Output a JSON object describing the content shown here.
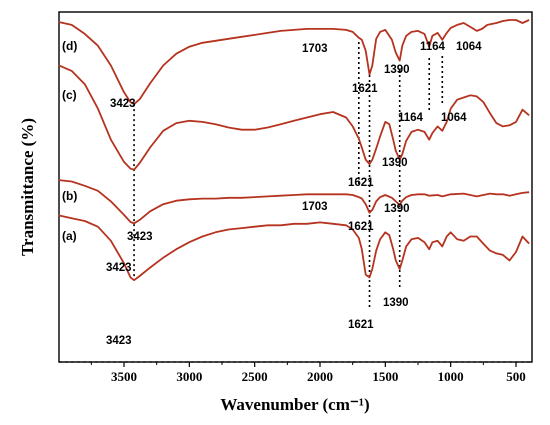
{
  "chart_data": {
    "type": "line",
    "xlabel": "Wavenumber (cm⁻¹)",
    "ylabel": "Transmittance (%)",
    "xlim": [
      4000,
      400
    ],
    "x_reversed": true,
    "xticks": [
      3500,
      3000,
      2500,
      2000,
      1500,
      1000,
      500
    ],
    "ylim": [
      0,
      100
    ],
    "legend": "none",
    "grid": false,
    "line_color": "#b5331f",
    "series": [
      {
        "name": "(d)",
        "points": [
          [
            4000,
            2
          ],
          [
            3900,
            5
          ],
          [
            3800,
            14
          ],
          [
            3700,
            26
          ],
          [
            3600,
            46
          ],
          [
            3500,
            73
          ],
          [
            3450,
            83
          ],
          [
            3423,
            85
          ],
          [
            3380,
            80
          ],
          [
            3300,
            64
          ],
          [
            3200,
            46
          ],
          [
            3100,
            34
          ],
          [
            3000,
            27
          ],
          [
            2900,
            23
          ],
          [
            2800,
            21
          ],
          [
            2700,
            19
          ],
          [
            2600,
            17
          ],
          [
            2500,
            15
          ],
          [
            2400,
            13
          ],
          [
            2300,
            11
          ],
          [
            2200,
            10
          ],
          [
            2100,
            9
          ],
          [
            2000,
            9
          ],
          [
            1900,
            9
          ],
          [
            1800,
            10
          ],
          [
            1750,
            12
          ],
          [
            1703,
            18
          ],
          [
            1680,
            20
          ],
          [
            1650,
            31
          ],
          [
            1621,
            55
          ],
          [
            1600,
            46
          ],
          [
            1570,
            19
          ],
          [
            1540,
            12
          ],
          [
            1500,
            10
          ],
          [
            1450,
            20
          ],
          [
            1420,
            33
          ],
          [
            1390,
            41
          ],
          [
            1370,
            26
          ],
          [
            1340,
            16
          ],
          [
            1300,
            12
          ],
          [
            1250,
            11
          ],
          [
            1200,
            14
          ],
          [
            1164,
            27
          ],
          [
            1140,
            16
          ],
          [
            1100,
            13
          ],
          [
            1064,
            20
          ],
          [
            1030,
            13
          ],
          [
            1000,
            8
          ],
          [
            950,
            5
          ],
          [
            900,
            3
          ],
          [
            850,
            7
          ],
          [
            800,
            11
          ],
          [
            760,
            9
          ],
          [
            720,
            5
          ],
          [
            650,
            3
          ],
          [
            600,
            1
          ],
          [
            550,
            0
          ],
          [
            500,
            0
          ],
          [
            450,
            3
          ],
          [
            400,
            0
          ]
        ]
      },
      {
        "name": "(c)",
        "points": [
          [
            4000,
            3
          ],
          [
            3900,
            8
          ],
          [
            3800,
            20
          ],
          [
            3700,
            42
          ],
          [
            3600,
            70
          ],
          [
            3500,
            90
          ],
          [
            3450,
            96
          ],
          [
            3423,
            97
          ],
          [
            3380,
            91
          ],
          [
            3300,
            77
          ],
          [
            3200,
            62
          ],
          [
            3100,
            55
          ],
          [
            3000,
            53
          ],
          [
            2900,
            54
          ],
          [
            2800,
            56
          ],
          [
            2700,
            59
          ],
          [
            2600,
            61
          ],
          [
            2500,
            61
          ],
          [
            2400,
            59
          ],
          [
            2300,
            56
          ],
          [
            2200,
            53
          ],
          [
            2100,
            50
          ],
          [
            2000,
            47
          ],
          [
            1900,
            45
          ],
          [
            1800,
            50
          ],
          [
            1750,
            58
          ],
          [
            1703,
            69
          ],
          [
            1680,
            77
          ],
          [
            1650,
            88
          ],
          [
            1621,
            92
          ],
          [
            1600,
            88
          ],
          [
            1570,
            78
          ],
          [
            1540,
            67
          ],
          [
            1500,
            54
          ],
          [
            1470,
            56
          ],
          [
            1440,
            70
          ],
          [
            1420,
            80
          ],
          [
            1390,
            88
          ],
          [
            1370,
            83
          ],
          [
            1340,
            71
          ],
          [
            1300,
            63
          ],
          [
            1250,
            61
          ],
          [
            1200,
            63
          ],
          [
            1164,
            70
          ],
          [
            1140,
            64
          ],
          [
            1100,
            58
          ],
          [
            1064,
            62
          ],
          [
            1030,
            54
          ],
          [
            1000,
            42
          ],
          [
            950,
            34
          ],
          [
            900,
            32
          ],
          [
            850,
            30
          ],
          [
            800,
            31
          ],
          [
            750,
            36
          ],
          [
            700,
            46
          ],
          [
            650,
            55
          ],
          [
            600,
            58
          ],
          [
            550,
            57
          ],
          [
            500,
            54
          ],
          [
            450,
            43
          ],
          [
            400,
            48
          ]
        ]
      },
      {
        "name": "(b)",
        "points": [
          [
            4000,
            10
          ],
          [
            3900,
            12
          ],
          [
            3800,
            18
          ],
          [
            3700,
            25
          ],
          [
            3600,
            40
          ],
          [
            3500,
            59
          ],
          [
            3450,
            69
          ],
          [
            3423,
            71
          ],
          [
            3380,
            66
          ],
          [
            3300,
            54
          ],
          [
            3200,
            44
          ],
          [
            3100,
            39
          ],
          [
            3000,
            37
          ],
          [
            2900,
            36
          ],
          [
            2800,
            36
          ],
          [
            2700,
            35
          ],
          [
            2600,
            35
          ],
          [
            2500,
            34
          ],
          [
            2400,
            33
          ],
          [
            2300,
            32
          ],
          [
            2200,
            31
          ],
          [
            2100,
            30
          ],
          [
            2000,
            30
          ],
          [
            1900,
            30
          ],
          [
            1800,
            30
          ],
          [
            1750,
            31
          ],
          [
            1703,
            34
          ],
          [
            1680,
            36
          ],
          [
            1650,
            44
          ],
          [
            1621,
            56
          ],
          [
            1600,
            52
          ],
          [
            1570,
            40
          ],
          [
            1540,
            34
          ],
          [
            1500,
            31
          ],
          [
            1450,
            35
          ],
          [
            1420,
            40
          ],
          [
            1390,
            45
          ],
          [
            1370,
            39
          ],
          [
            1340,
            34
          ],
          [
            1300,
            31
          ],
          [
            1250,
            30
          ],
          [
            1200,
            30
          ],
          [
            1164,
            32
          ],
          [
            1100,
            31
          ],
          [
            1064,
            33
          ],
          [
            1000,
            30
          ],
          [
            900,
            29
          ],
          [
            850,
            31
          ],
          [
            800,
            33
          ],
          [
            750,
            31
          ],
          [
            700,
            29
          ],
          [
            650,
            30
          ],
          [
            600,
            30
          ],
          [
            550,
            32
          ],
          [
            500,
            30
          ],
          [
            450,
            28
          ],
          [
            400,
            27
          ]
        ]
      },
      {
        "name": "(a)",
        "points": [
          [
            4000,
            18
          ],
          [
            3900,
            20
          ],
          [
            3800,
            22
          ],
          [
            3700,
            26
          ],
          [
            3600,
            36
          ],
          [
            3500,
            52
          ],
          [
            3450,
            62
          ],
          [
            3423,
            64
          ],
          [
            3380,
            61
          ],
          [
            3300,
            55
          ],
          [
            3200,
            48
          ],
          [
            3100,
            42
          ],
          [
            3000,
            37
          ],
          [
            2900,
            33
          ],
          [
            2800,
            30
          ],
          [
            2700,
            28
          ],
          [
            2600,
            27
          ],
          [
            2500,
            26
          ],
          [
            2400,
            25
          ],
          [
            2300,
            25
          ],
          [
            2200,
            24
          ],
          [
            2100,
            24
          ],
          [
            2000,
            23
          ],
          [
            1900,
            24
          ],
          [
            1800,
            25
          ],
          [
            1750,
            28
          ],
          [
            1703,
            34
          ],
          [
            1680,
            42
          ],
          [
            1650,
            60
          ],
          [
            1621,
            62
          ],
          [
            1600,
            56
          ],
          [
            1570,
            43
          ],
          [
            1540,
            35
          ],
          [
            1500,
            30
          ],
          [
            1470,
            32
          ],
          [
            1440,
            42
          ],
          [
            1420,
            50
          ],
          [
            1390,
            56
          ],
          [
            1370,
            50
          ],
          [
            1340,
            40
          ],
          [
            1300,
            35
          ],
          [
            1250,
            34
          ],
          [
            1200,
            37
          ],
          [
            1164,
            42
          ],
          [
            1140,
            37
          ],
          [
            1100,
            36
          ],
          [
            1064,
            40
          ],
          [
            1030,
            33
          ],
          [
            1000,
            30
          ],
          [
            950,
            35
          ],
          [
            900,
            36
          ],
          [
            850,
            33
          ],
          [
            800,
            33
          ],
          [
            750,
            38
          ],
          [
            700,
            43
          ],
          [
            650,
            45
          ],
          [
            600,
            46
          ],
          [
            550,
            50
          ],
          [
            500,
            44
          ],
          [
            450,
            33
          ],
          [
            400,
            38
          ]
        ]
      }
    ],
    "annotations": [
      {
        "trace": "(d)",
        "text": "3423",
        "x": 3423
      },
      {
        "trace": "(d)",
        "text": "1703",
        "x": 1703
      },
      {
        "trace": "(d)",
        "text": "1621",
        "x": 1621
      },
      {
        "trace": "(d)",
        "text": "1390",
        "x": 1390
      },
      {
        "trace": "(d)",
        "text": "1164",
        "x": 1164
      },
      {
        "trace": "(d)",
        "text": "1064",
        "x": 1064
      },
      {
        "trace": "(c)",
        "text": "1621",
        "x": 1621
      },
      {
        "trace": "(c)",
        "text": "1390",
        "x": 1390
      },
      {
        "trace": "(c)",
        "text": "1164",
        "x": 1164
      },
      {
        "trace": "(c)",
        "text": "1064",
        "x": 1064
      },
      {
        "trace": "(b)",
        "text": "3423",
        "x": 3423
      },
      {
        "trace": "(b)",
        "text": "1703",
        "x": 1703
      },
      {
        "trace": "(b)",
        "text": "1621",
        "x": 1621
      },
      {
        "trace": "(b)",
        "text": "1390",
        "x": 1390
      },
      {
        "trace": "(a)",
        "text": "3423",
        "x": 3423
      },
      {
        "trace": "(a)",
        "text": "3423",
        "x": 3423
      },
      {
        "trace": "(a)",
        "text": "1621",
        "x": 1621
      },
      {
        "trace": "(a)",
        "text": "1390",
        "x": 1390
      }
    ],
    "reference_lines": [
      3423,
      1703,
      1621,
      1390,
      1164,
      1064
    ]
  }
}
